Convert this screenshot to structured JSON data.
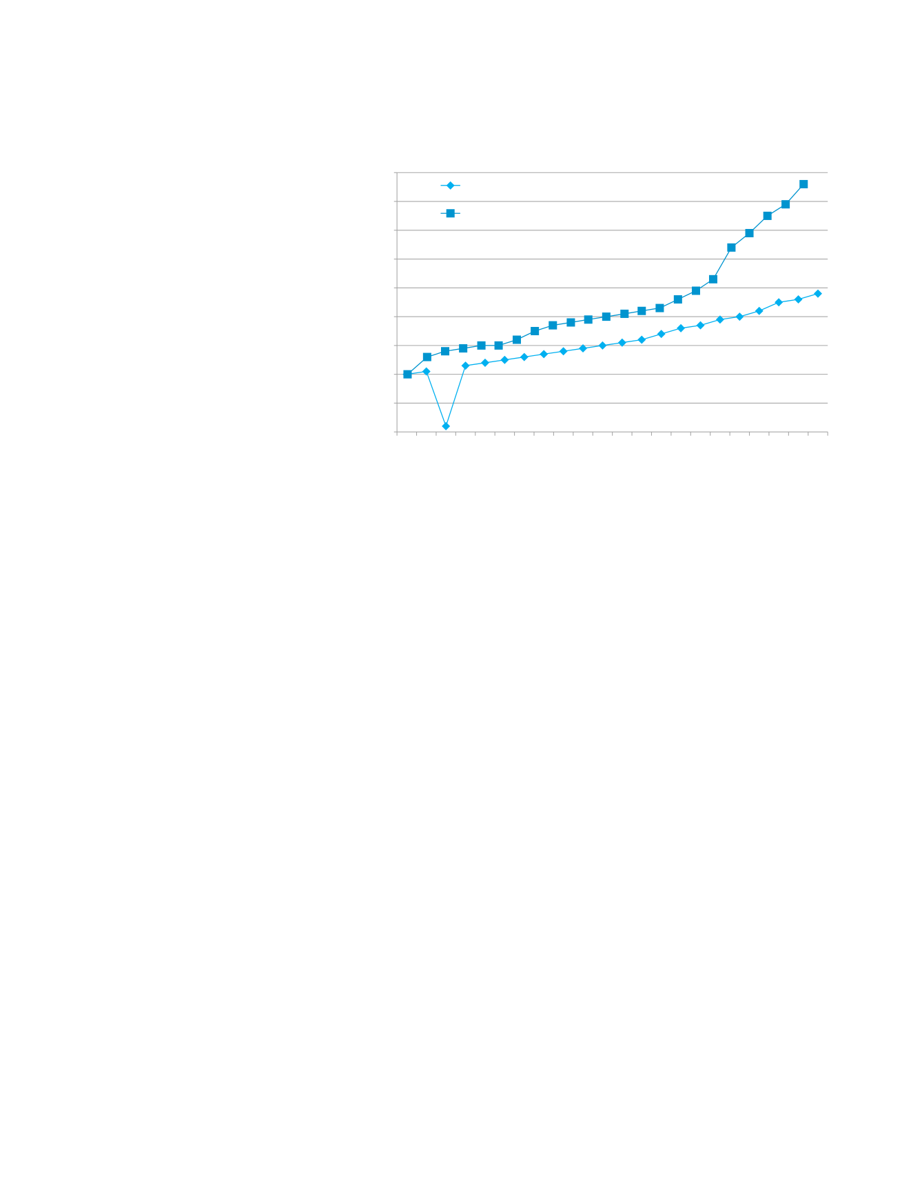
{
  "chart_data": {
    "type": "line",
    "xlim": [
      0.5,
      22.5
    ],
    "xticks": [
      0.5,
      1.5,
      2.5,
      3.5,
      4.5,
      5.5,
      6.5,
      7.5,
      8.5,
      9.5,
      10.5,
      11.5,
      12.5,
      13.5,
      14.5,
      15.5,
      16.5,
      17.5,
      18.5,
      19.5,
      20.5,
      21.5,
      22.5
    ],
    "ylim": [
      0,
      9
    ],
    "yticks": [
      0,
      1,
      2,
      3,
      4,
      5,
      6,
      7,
      8,
      9
    ],
    "grid": true,
    "legend": "upper-left",
    "series": [
      {
        "color": "#00b0f0",
        "marker": "diamond",
        "x": [
          1,
          2,
          3,
          4,
          5,
          6,
          7,
          8,
          9,
          10,
          11,
          12,
          13,
          14,
          15,
          16,
          17,
          18,
          19,
          20,
          21,
          22
        ],
        "values": [
          2.0,
          2.1,
          0.2,
          2.3,
          2.4,
          2.5,
          2.6,
          2.7,
          2.8,
          2.9,
          3.0,
          3.1,
          3.2,
          3.4,
          3.6,
          3.7,
          3.9,
          4.0,
          4.2,
          4.5,
          4.6,
          4.8
        ]
      },
      {
        "color": "#0094cf",
        "marker": "square",
        "x": [
          1.04,
          2.04,
          2.96,
          3.88,
          4.81,
          5.69,
          6.62,
          7.54,
          8.46,
          9.38,
          10.27,
          11.19,
          12.12,
          13.0,
          13.92,
          14.85,
          15.77,
          16.65,
          17.58,
          18.5,
          19.42,
          20.35,
          21.27
        ],
        "values": [
          2.0,
          2.6,
          2.8,
          2.9,
          3.0,
          3.0,
          3.2,
          3.5,
          3.7,
          3.8,
          3.9,
          4.0,
          4.1,
          4.2,
          4.3,
          4.6,
          4.9,
          5.3,
          6.4,
          6.9,
          7.5,
          7.9,
          8.6
        ]
      }
    ]
  }
}
